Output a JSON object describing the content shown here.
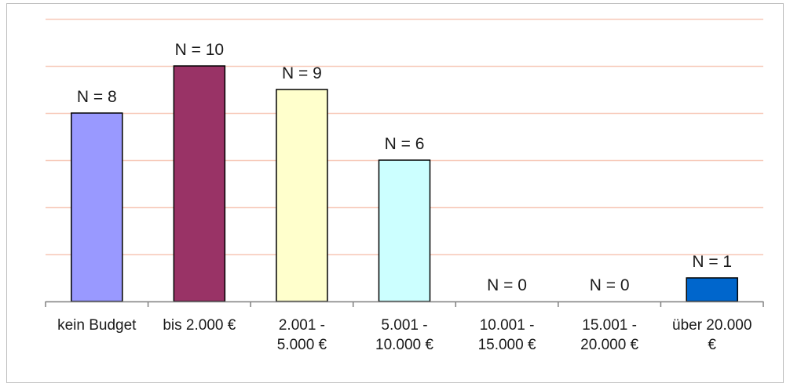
{
  "chart_data": {
    "type": "bar",
    "title": "",
    "xlabel": "",
    "ylabel": "",
    "ylim": [
      0,
      12
    ],
    "grid": true,
    "categories": [
      [
        "kein Budget"
      ],
      [
        "bis 2.000 €"
      ],
      [
        "2.001 -",
        "5.000 €"
      ],
      [
        "5.001 -",
        "10.000 €"
      ],
      [
        "10.001 -",
        "15.000 €"
      ],
      [
        "15.001 -",
        "20.000 €"
      ],
      [
        "über 20.000",
        "€"
      ]
    ],
    "values": [
      8,
      10,
      9,
      6,
      0,
      0,
      1
    ],
    "data_labels": [
      "N = 8",
      "N = 10",
      "N = 9",
      "N = 6",
      "N = 0",
      "N = 0",
      "N = 1"
    ],
    "colors": [
      "#9999ff",
      "#993366",
      "#ffffcc",
      "#ccffff",
      "#660066",
      "#ff8080",
      "#0066cc"
    ],
    "gridline_color": "#f7c9b9",
    "axis_color": "#808080",
    "bar_border_color": "#000000"
  }
}
